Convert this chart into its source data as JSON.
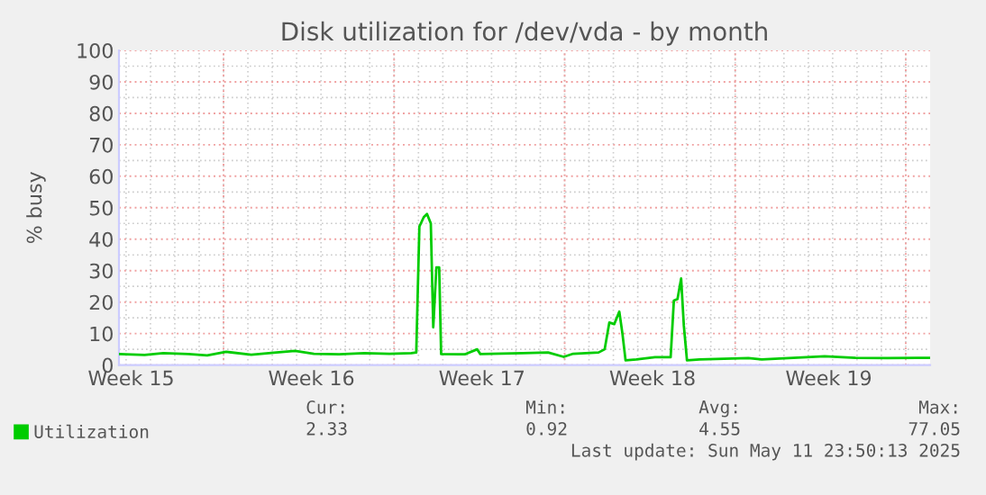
{
  "chart_data": {
    "type": "line",
    "title": "Disk utilization for /dev/vda - by month",
    "ylabel": "% busy",
    "x": [
      "2025-04-08T17:00",
      "2025-04-09T18:10",
      "2025-04-10T12:40",
      "2025-04-11T13:25",
      "2025-04-12T07:55",
      "2025-04-13T02:35",
      "2025-04-14T03:20",
      "2025-04-15T04:00",
      "2025-04-15T22:30",
      "2025-04-16T17:00",
      "2025-04-17T18:00",
      "2025-04-18T18:40",
      "2025-04-19T19:25",
      "2025-04-20T17:00",
      "2025-04-20T21:50",
      "2025-04-21T00:55",
      "2025-04-21T05:15",
      "2025-04-21T08:25",
      "2025-04-21T12:10",
      "2025-04-21T14:35",
      "2025-04-21T17:40",
      "2025-04-21T20:25",
      "2025-04-21T22:20",
      "2025-04-22T21:35",
      "2025-04-23T09:50",
      "2025-04-23T12:55",
      "2025-04-25T07:00",
      "2025-04-26T07:40",
      "2025-04-26T23:05",
      "2025-04-27T08:25",
      "2025-04-28T09:25",
      "2025-04-28T15:25",
      "2025-04-28T20:00",
      "2025-04-29T00:50",
      "2025-04-29T05:50",
      "2025-04-29T08:55",
      "2025-04-29T12:00",
      "2025-04-29T22:35",
      "2025-04-30T17:05",
      "2025-05-01T08:25",
      "2025-05-01T11:35",
      "2025-05-01T15:10",
      "2025-05-01T18:45",
      "2025-05-01T21:25",
      "2025-05-02T00:30",
      "2025-05-02T13:00",
      "2025-05-04T13:00",
      "2025-05-05T02:10",
      "2025-05-07T16:05",
      "2025-05-08T22:35",
      "2025-05-10T05:50",
      "2025-05-12T00:00"
    ],
    "series": [
      {
        "name": "Utilization",
        "color": "#00cc00",
        "values": [
          3.5,
          3.2,
          3.8,
          3.5,
          3.1,
          4.2,
          3.3,
          4.0,
          4.5,
          3.6,
          3.4,
          3.8,
          3.6,
          3.8,
          4.0,
          44,
          47,
          48,
          45,
          12,
          31,
          31,
          3.5,
          3.4,
          5.0,
          3.5,
          3.8,
          4.0,
          2.6,
          3.6,
          4.0,
          5.0,
          13.5,
          13.0,
          17,
          10,
          1.5,
          1.8,
          2.5,
          2.5,
          20.5,
          21,
          27.5,
          12.5,
          1.5,
          1.8,
          2.2,
          1.8,
          2.8,
          2.3,
          2.2,
          2.3
        ]
      }
    ],
    "xlim": [
      "2025-04-08T17:00",
      "2025-05-12T00:00"
    ],
    "xticks": [
      {
        "value": "2025-04-09T05:00",
        "label": "Week 15"
      },
      {
        "value": "2025-04-13",
        "label": null
      },
      {
        "value": "2025-04-16T14:35",
        "label": "Week 16"
      },
      {
        "value": "2025-04-20",
        "label": null
      },
      {
        "value": "2025-04-23T14:35",
        "label": "Week 17"
      },
      {
        "value": "2025-04-27",
        "label": null
      },
      {
        "value": "2025-04-30T14:35",
        "label": "Week 18"
      },
      {
        "value": "2025-05-04",
        "label": null
      },
      {
        "value": "2025-05-07T20:10",
        "label": "Week 19"
      },
      {
        "value": "2025-05-11",
        "label": null
      }
    ],
    "ylim": [
      0,
      100
    ],
    "yticks": [
      0,
      10,
      20,
      30,
      40,
      50,
      60,
      70,
      80,
      90,
      100
    ],
    "grid": true,
    "legend": "bottom left",
    "marker": "none",
    "line_style": "solid",
    "annotations": [
      "Cur:",
      "Min:",
      "Avg:",
      "Max:",
      "2.33",
      "0.92",
      "4.55",
      "77.05",
      "Last update: Sun May 11 23:50:13 2025"
    ]
  }
}
